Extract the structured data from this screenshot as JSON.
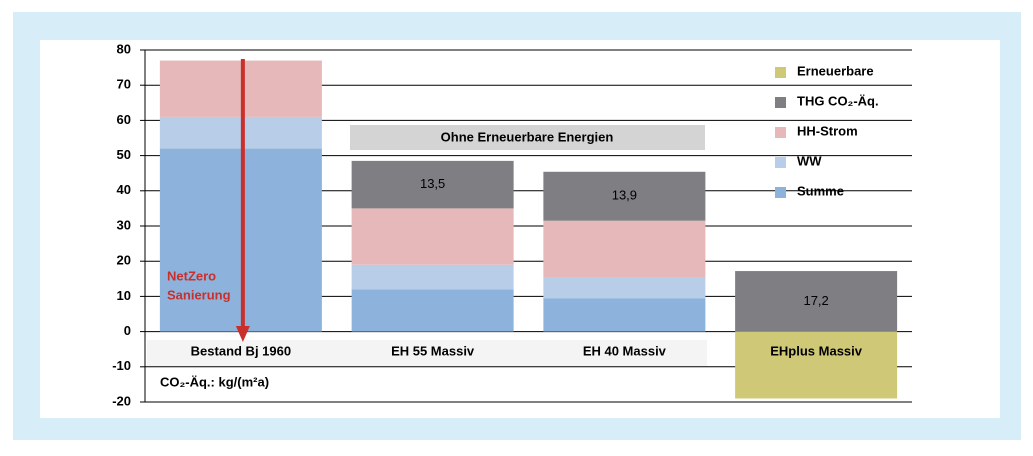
{
  "chart_data": {
    "type": "stacked_bar",
    "categories": [
      "Bestand Bj 1960",
      "EH 55 Massiv",
      "EH 40 Massiv",
      "EHplus Massiv"
    ],
    "series": [
      {
        "name": "Summe",
        "color": "#8db3dc",
        "values": [
          52,
          12,
          9.5,
          null
        ]
      },
      {
        "name": "WW",
        "color": "#b8cde8",
        "values": [
          9,
          7,
          6,
          null
        ]
      },
      {
        "name": "HH-Strom",
        "color": "#e6b8b9",
        "values": [
          16,
          16,
          16,
          null
        ]
      },
      {
        "name": "THG CO₂-Äq.",
        "color": "#7f7f83",
        "values": [
          null,
          13.5,
          13.9,
          17.2
        ],
        "value_labels": [
          null,
          "13,5",
          "13,9",
          "17,2"
        ]
      },
      {
        "name": "Erneuerbare",
        "color": "#cfc876",
        "values": [
          null,
          null,
          null,
          -19
        ]
      }
    ],
    "ylim": [
      -20,
      80
    ],
    "yticks": [
      -20,
      -10,
      0,
      10,
      20,
      30,
      40,
      50,
      60,
      70,
      80
    ],
    "grid": true,
    "legend": "upper right",
    "banner": "Ohne Erneuerbare Energien",
    "arrow_label": [
      "NetZero",
      "Sanierung"
    ],
    "unit_label": "CO₂-Äq.: kg/(m²a)"
  }
}
